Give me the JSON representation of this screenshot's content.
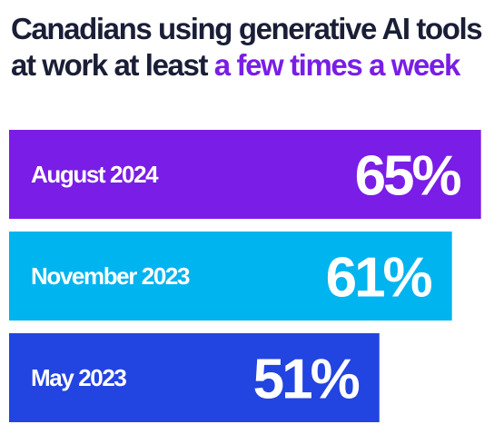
{
  "title": {
    "part1": "Canadians using generative AI tools at work at least ",
    "highlight": "a few times a week"
  },
  "colors": {
    "title": "#1a1e36",
    "highlight": "#7a1de6"
  },
  "chart_data": {
    "type": "bar",
    "orientation": "horizontal",
    "categories": [
      "August 2024",
      "November 2023",
      "May 2023"
    ],
    "values": [
      65,
      61,
      51
    ],
    "value_labels": [
      "65%",
      "61%",
      "51%"
    ],
    "bar_colors": [
      "#7a1de6",
      "#00b4ef",
      "#2244e0"
    ],
    "title": "Canadians using generative AI tools at work at least a few times a week",
    "xlabel": "",
    "ylabel": "",
    "grid": false,
    "legend": "none"
  }
}
